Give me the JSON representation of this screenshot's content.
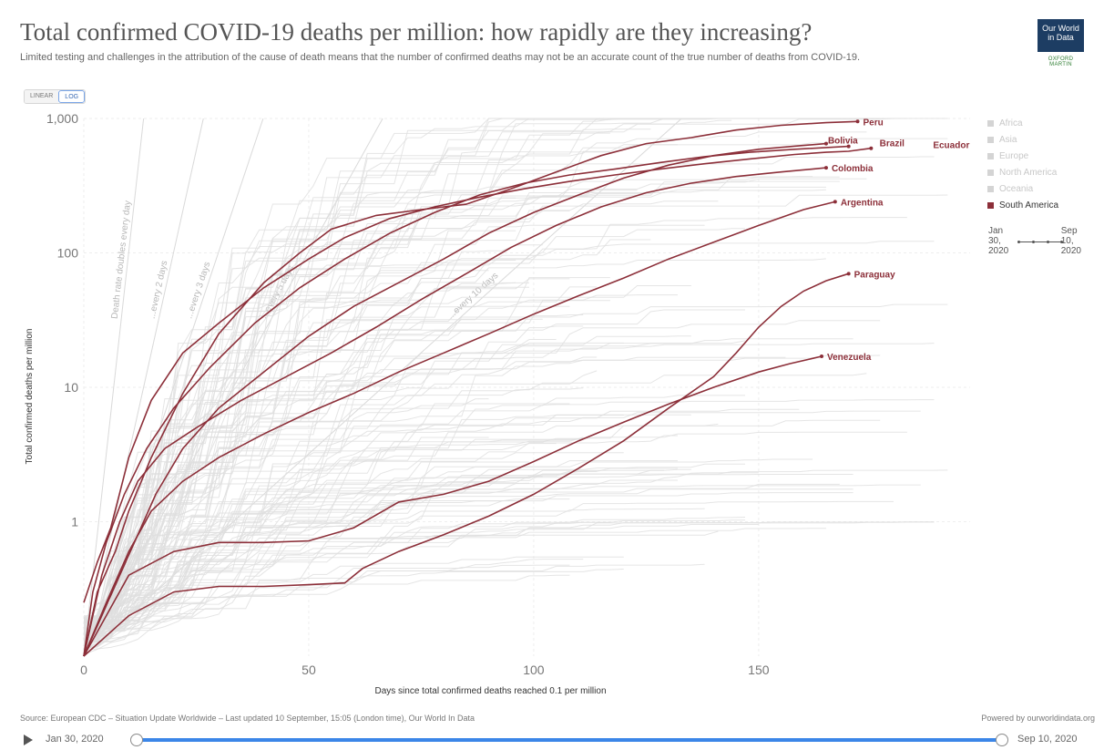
{
  "title": "Total confirmed COVID-19 deaths per million: how rapidly are they increasing?",
  "subtitle": "Limited testing and challenges in the attribution of the cause of death means that the number of confirmed deaths may not be an accurate count of the true number of deaths from COVID-19.",
  "logo": {
    "line1": "Our World",
    "line2": "in Data",
    "sub": "OXFORD MARTIN"
  },
  "scale_toggle": {
    "linear": "LINEAR",
    "log": "LOG",
    "selected": "log"
  },
  "legend": [
    {
      "label": "Africa",
      "active": false
    },
    {
      "label": "Asia",
      "active": false
    },
    {
      "label": "Europe",
      "active": false
    },
    {
      "label": "North America",
      "active": false
    },
    {
      "label": "Oceania",
      "active": false
    },
    {
      "label": "South America",
      "active": true
    }
  ],
  "mini_range": {
    "start_line1": "Jan",
    "start_line2": "30,",
    "start_line3": "2020",
    "end_line1": "Sep",
    "end_line2": "10,",
    "end_line3": "2020"
  },
  "source": "Source: European CDC – Situation Update Worldwide – Last updated 10 September, 15:05 (London time), Our World In Data",
  "powered_by": "Powered by ourworldindata.org",
  "timeline": {
    "start_label": "Jan 30, 2020",
    "end_label": "Sep 10, 2020"
  },
  "colors": {
    "highlight": "#8c2f39",
    "background_lines": "#dedede",
    "grid": "#eeeeee",
    "timeline": "#3b86e8"
  },
  "chart_data": {
    "type": "line",
    "xlabel": "Days since total confirmed deaths reached 0.1 per million",
    "ylabel": "Total confirmed deaths per million",
    "x_ticks": [
      "0",
      "50",
      "100",
      "150"
    ],
    "y_ticks": [
      "1",
      "10",
      "100",
      "1,000"
    ],
    "y_scale": "log",
    "xlim": [
      0,
      197
    ],
    "ylim": [
      0.1,
      1000
    ],
    "grid": true,
    "legend_position": "right",
    "reference_lines": [
      {
        "label": "Death rate doubles every day",
        "doubling_days": 1
      },
      {
        "label": "...every 2 days",
        "doubling_days": 2
      },
      {
        "label": "...every 3 days",
        "doubling_days": 3
      },
      {
        "label": "...every 5 days",
        "doubling_days": 5
      },
      {
        "label": "...every 10 days",
        "doubling_days": 10
      }
    ],
    "series": [
      {
        "name": "Peru",
        "label_dy": 0,
        "points": [
          [
            0,
            0.1
          ],
          [
            3,
            0.3
          ],
          [
            7,
            0.6
          ],
          [
            10,
            1.2
          ],
          [
            15,
            3
          ],
          [
            22,
            9
          ],
          [
            30,
            25
          ],
          [
            40,
            60
          ],
          [
            48,
            100
          ],
          [
            55,
            150
          ],
          [
            65,
            190
          ],
          [
            75,
            210
          ],
          [
            85,
            230
          ],
          [
            95,
            300
          ],
          [
            105,
            400
          ],
          [
            115,
            530
          ],
          [
            125,
            650
          ],
          [
            135,
            720
          ],
          [
            145,
            820
          ],
          [
            155,
            890
          ],
          [
            165,
            930
          ],
          [
            172,
            950
          ]
        ]
      },
      {
        "name": "Bolivia",
        "label_dy": 0,
        "points": [
          [
            0,
            0.1
          ],
          [
            4,
            0.2
          ],
          [
            8,
            0.4
          ],
          [
            12,
            0.8
          ],
          [
            16,
            1.6
          ],
          [
            22,
            3.5
          ],
          [
            30,
            7
          ],
          [
            40,
            13
          ],
          [
            50,
            24
          ],
          [
            60,
            40
          ],
          [
            70,
            60
          ],
          [
            80,
            90
          ],
          [
            90,
            140
          ],
          [
            100,
            200
          ],
          [
            110,
            270
          ],
          [
            120,
            360
          ],
          [
            130,
            450
          ],
          [
            140,
            530
          ],
          [
            150,
            590
          ],
          [
            160,
            630
          ],
          [
            165,
            650
          ]
        ]
      },
      {
        "name": "Brazil",
        "label_dy": 0,
        "points": [
          [
            0,
            0.1
          ],
          [
            2,
            0.3
          ],
          [
            5,
            0.7
          ],
          [
            9,
            1.6
          ],
          [
            14,
            3.5
          ],
          [
            20,
            7
          ],
          [
            28,
            14
          ],
          [
            38,
            30
          ],
          [
            48,
            55
          ],
          [
            58,
            90
          ],
          [
            68,
            140
          ],
          [
            78,
            200
          ],
          [
            88,
            270
          ],
          [
            98,
            330
          ],
          [
            108,
            380
          ],
          [
            118,
            420
          ],
          [
            128,
            470
          ],
          [
            138,
            520
          ],
          [
            148,
            560
          ],
          [
            158,
            590
          ],
          [
            170,
            620
          ]
        ]
      },
      {
        "name": "Ecuador",
        "label_dy": 0,
        "points": [
          [
            0,
            0.25
          ],
          [
            3,
            0.5
          ],
          [
            6,
            0.9
          ],
          [
            10,
            3
          ],
          [
            15,
            8
          ],
          [
            22,
            18
          ],
          [
            30,
            30
          ],
          [
            40,
            55
          ],
          [
            50,
            90
          ],
          [
            58,
            130
          ],
          [
            68,
            180
          ],
          [
            78,
            220
          ],
          [
            88,
            260
          ],
          [
            98,
            300
          ],
          [
            108,
            340
          ],
          [
            118,
            380
          ],
          [
            128,
            420
          ],
          [
            138,
            460
          ],
          [
            148,
            500
          ],
          [
            158,
            540
          ],
          [
            165,
            560
          ],
          [
            170,
            570
          ],
          [
            175,
            600
          ]
        ]
      },
      {
        "name": "Colombia",
        "label_dy": 0,
        "points": [
          [
            0,
            0.1
          ],
          [
            4,
            0.4
          ],
          [
            8,
            1
          ],
          [
            12,
            2
          ],
          [
            18,
            3.5
          ],
          [
            25,
            5
          ],
          [
            35,
            8
          ],
          [
            45,
            12
          ],
          [
            55,
            18
          ],
          [
            65,
            28
          ],
          [
            75,
            45
          ],
          [
            85,
            70
          ],
          [
            95,
            110
          ],
          [
            105,
            160
          ],
          [
            115,
            220
          ],
          [
            125,
            280
          ],
          [
            135,
            330
          ],
          [
            145,
            370
          ],
          [
            155,
            400
          ],
          [
            165,
            430
          ]
        ]
      },
      {
        "name": "Argentina",
        "label_dy": 0,
        "points": [
          [
            0,
            0.1
          ],
          [
            5,
            0.25
          ],
          [
            10,
            0.6
          ],
          [
            15,
            1.2
          ],
          [
            22,
            2
          ],
          [
            30,
            3
          ],
          [
            40,
            4.5
          ],
          [
            50,
            6.5
          ],
          [
            60,
            9
          ],
          [
            70,
            13
          ],
          [
            80,
            18
          ],
          [
            90,
            25
          ],
          [
            100,
            35
          ],
          [
            110,
            48
          ],
          [
            120,
            65
          ],
          [
            130,
            90
          ],
          [
            140,
            120
          ],
          [
            150,
            160
          ],
          [
            160,
            210
          ],
          [
            167,
            240
          ]
        ]
      },
      {
        "name": "Paraguay",
        "label_dy": 0,
        "points": [
          [
            0,
            0.1
          ],
          [
            10,
            0.2
          ],
          [
            20,
            0.3
          ],
          [
            30,
            0.33
          ],
          [
            40,
            0.33
          ],
          [
            50,
            0.34
          ],
          [
            58,
            0.35
          ],
          [
            62,
            0.45
          ],
          [
            70,
            0.6
          ],
          [
            80,
            0.8
          ],
          [
            90,
            1.1
          ],
          [
            100,
            1.6
          ],
          [
            110,
            2.5
          ],
          [
            120,
            4
          ],
          [
            130,
            7
          ],
          [
            140,
            12
          ],
          [
            145,
            18
          ],
          [
            150,
            28
          ],
          [
            155,
            40
          ],
          [
            160,
            52
          ],
          [
            165,
            62
          ],
          [
            170,
            70
          ]
        ]
      },
      {
        "name": "Venezuela",
        "label_dy": 0,
        "points": [
          [
            0,
            0.1
          ],
          [
            5,
            0.2
          ],
          [
            10,
            0.4
          ],
          [
            20,
            0.6
          ],
          [
            30,
            0.7
          ],
          [
            40,
            0.7
          ],
          [
            50,
            0.72
          ],
          [
            60,
            0.9
          ],
          [
            70,
            1.4
          ],
          [
            80,
            1.6
          ],
          [
            90,
            2
          ],
          [
            100,
            2.8
          ],
          [
            110,
            4
          ],
          [
            120,
            5.5
          ],
          [
            130,
            7.5
          ],
          [
            140,
            10
          ],
          [
            150,
            13
          ],
          [
            157,
            15
          ],
          [
            164,
            17
          ]
        ]
      }
    ]
  }
}
